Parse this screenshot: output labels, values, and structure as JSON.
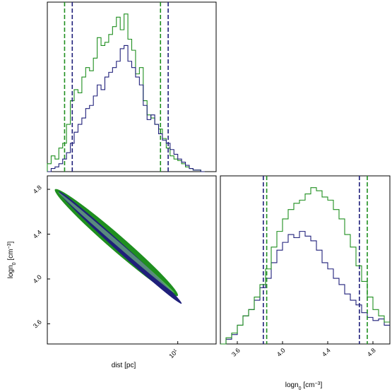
{
  "colors": {
    "series_a": "#1f1f7a",
    "series_b": "#1f8f1f",
    "series_b_light": "#7fd37f",
    "frame": "#000000"
  },
  "chart_data": [
    {
      "panel": "top-left",
      "type": "histogram",
      "xlim": [
        7.6,
        12.0
      ],
      "grid": false,
      "series": [
        {
          "color_key": "series_b",
          "quantile_lines": [
            8.05,
            10.55
          ],
          "bins": [
            [
              7.6,
              0.05
            ],
            [
              7.7,
              0.1
            ],
            [
              7.8,
              0.08
            ],
            [
              7.9,
              0.15
            ],
            [
              8.0,
              0.18
            ],
            [
              8.1,
              0.3
            ],
            [
              8.2,
              0.45
            ],
            [
              8.3,
              0.52
            ],
            [
              8.4,
              0.5
            ],
            [
              8.5,
              0.6
            ],
            [
              8.6,
              0.66
            ],
            [
              8.7,
              0.64
            ],
            [
              8.8,
              0.72
            ],
            [
              8.9,
              0.85
            ],
            [
              9.0,
              0.8
            ],
            [
              9.1,
              0.82
            ],
            [
              9.2,
              0.87
            ],
            [
              9.3,
              0.92
            ],
            [
              9.4,
              0.98
            ],
            [
              9.5,
              0.9
            ],
            [
              9.6,
              1.0
            ],
            [
              9.7,
              0.84
            ],
            [
              9.8,
              0.77
            ],
            [
              9.9,
              0.62
            ],
            [
              10.0,
              0.66
            ],
            [
              10.1,
              0.45
            ],
            [
              10.2,
              0.36
            ],
            [
              10.3,
              0.34
            ],
            [
              10.4,
              0.3
            ],
            [
              10.5,
              0.27
            ],
            [
              10.6,
              0.21
            ],
            [
              10.7,
              0.15
            ],
            [
              10.8,
              0.1
            ],
            [
              10.9,
              0.08
            ],
            [
              11.0,
              0.07
            ],
            [
              11.1,
              0.05
            ],
            [
              11.2,
              0.03
            ],
            [
              11.3,
              0.02
            ],
            [
              11.4,
              0.01
            ],
            [
              11.5,
              0.01
            ],
            [
              11.6,
              0.0
            ]
          ]
        },
        {
          "color_key": "series_a",
          "quantile_lines": [
            8.25,
            10.75
          ],
          "bins": [
            [
              7.6,
              0.0
            ],
            [
              7.7,
              0.02
            ],
            [
              7.8,
              0.03
            ],
            [
              7.9,
              0.05
            ],
            [
              8.0,
              0.08
            ],
            [
              8.1,
              0.12
            ],
            [
              8.2,
              0.18
            ],
            [
              8.3,
              0.25
            ],
            [
              8.4,
              0.3
            ],
            [
              8.5,
              0.34
            ],
            [
              8.6,
              0.4
            ],
            [
              8.7,
              0.42
            ],
            [
              8.8,
              0.48
            ],
            [
              8.9,
              0.55
            ],
            [
              9.0,
              0.52
            ],
            [
              9.1,
              0.6
            ],
            [
              9.2,
              0.63
            ],
            [
              9.3,
              0.66
            ],
            [
              9.4,
              0.7
            ],
            [
              9.5,
              0.78
            ],
            [
              9.6,
              0.8
            ],
            [
              9.7,
              0.7
            ],
            [
              9.8,
              0.66
            ],
            [
              9.9,
              0.6
            ],
            [
              10.0,
              0.55
            ],
            [
              10.1,
              0.42
            ],
            [
              10.2,
              0.33
            ],
            [
              10.3,
              0.36
            ],
            [
              10.4,
              0.3
            ],
            [
              10.5,
              0.24
            ],
            [
              10.6,
              0.2
            ],
            [
              10.7,
              0.18
            ],
            [
              10.8,
              0.14
            ],
            [
              10.9,
              0.11
            ],
            [
              11.0,
              0.08
            ],
            [
              11.1,
              0.06
            ],
            [
              11.2,
              0.04
            ],
            [
              11.3,
              0.02
            ],
            [
              11.4,
              0.01
            ],
            [
              11.5,
              0.01
            ],
            [
              11.6,
              0.0
            ]
          ]
        }
      ]
    },
    {
      "panel": "bottom-left",
      "type": "scatter",
      "xlabel": "dist [pc]",
      "ylabel_main": "logn",
      "ylabel_sub": "0",
      "ylabel_unit": " [cm",
      "ylabel_exp": "−3",
      "ylabel_close": "]",
      "xlim": [
        7.6,
        12.0
      ],
      "ylim": [
        3.42,
        4.92
      ],
      "xticks": [
        {
          "value": 11.0,
          "base": "10",
          "exp": "1"
        }
      ],
      "yticks": [
        "3.6",
        "4.0",
        "4.4",
        "4.8"
      ],
      "contours": [
        {
          "color_key": "series_b",
          "x_range": [
            7.8,
            11.0
          ],
          "y_range": [
            4.8,
            3.85
          ]
        },
        {
          "color_key": "series_a",
          "x_range": [
            7.9,
            11.1
          ],
          "y_range": [
            4.78,
            3.78
          ]
        }
      ]
    },
    {
      "panel": "bottom-right",
      "type": "histogram",
      "xlabel_main": "logn",
      "xlabel_sub": "0",
      "xlabel_unit": " [cm",
      "xlabel_exp": "−3",
      "xlabel_close": "]",
      "xlim": [
        3.45,
        4.95
      ],
      "xticks": [
        "3.6",
        "4.0",
        "4.4",
        "4.8"
      ],
      "series": [
        {
          "color_key": "series_a",
          "quantile_lines": [
            3.83,
            4.68
          ],
          "bins": [
            [
              3.45,
              0.0
            ],
            [
              3.5,
              0.03
            ],
            [
              3.55,
              0.06
            ],
            [
              3.6,
              0.12
            ],
            [
              3.65,
              0.18
            ],
            [
              3.7,
              0.22
            ],
            [
              3.75,
              0.28
            ],
            [
              3.8,
              0.36
            ],
            [
              3.85,
              0.42
            ],
            [
              3.9,
              0.52
            ],
            [
              3.95,
              0.6
            ],
            [
              4.0,
              0.65
            ],
            [
              4.05,
              0.7
            ],
            [
              4.1,
              0.68
            ],
            [
              4.15,
              0.72
            ],
            [
              4.2,
              0.69
            ],
            [
              4.25,
              0.66
            ],
            [
              4.3,
              0.6
            ],
            [
              4.35,
              0.52
            ],
            [
              4.4,
              0.48
            ],
            [
              4.45,
              0.42
            ],
            [
              4.5,
              0.38
            ],
            [
              4.55,
              0.32
            ],
            [
              4.6,
              0.28
            ],
            [
              4.65,
              0.25
            ],
            [
              4.7,
              0.2
            ],
            [
              4.75,
              0.17
            ],
            [
              4.8,
              0.15
            ],
            [
              4.85,
              0.16
            ],
            [
              4.9,
              0.12
            ]
          ]
        },
        {
          "color_key": "series_b",
          "quantile_lines": [
            3.86,
            4.75
          ],
          "bins": [
            [
              3.45,
              0.0
            ],
            [
              3.5,
              0.04
            ],
            [
              3.55,
              0.07
            ],
            [
              3.6,
              0.12
            ],
            [
              3.65,
              0.18
            ],
            [
              3.7,
              0.22
            ],
            [
              3.75,
              0.3
            ],
            [
              3.8,
              0.38
            ],
            [
              3.85,
              0.48
            ],
            [
              3.9,
              0.62
            ],
            [
              3.95,
              0.72
            ],
            [
              4.0,
              0.8
            ],
            [
              4.05,
              0.86
            ],
            [
              4.1,
              0.9
            ],
            [
              4.15,
              0.92
            ],
            [
              4.2,
              0.96
            ],
            [
              4.25,
              1.0
            ],
            [
              4.3,
              0.98
            ],
            [
              4.35,
              0.94
            ],
            [
              4.4,
              0.92
            ],
            [
              4.45,
              0.86
            ],
            [
              4.5,
              0.8
            ],
            [
              4.55,
              0.7
            ],
            [
              4.6,
              0.62
            ],
            [
              4.65,
              0.5
            ],
            [
              4.7,
              0.4
            ],
            [
              4.75,
              0.3
            ],
            [
              4.8,
              0.22
            ],
            [
              4.85,
              0.18
            ],
            [
              4.9,
              0.14
            ]
          ]
        }
      ]
    }
  ]
}
